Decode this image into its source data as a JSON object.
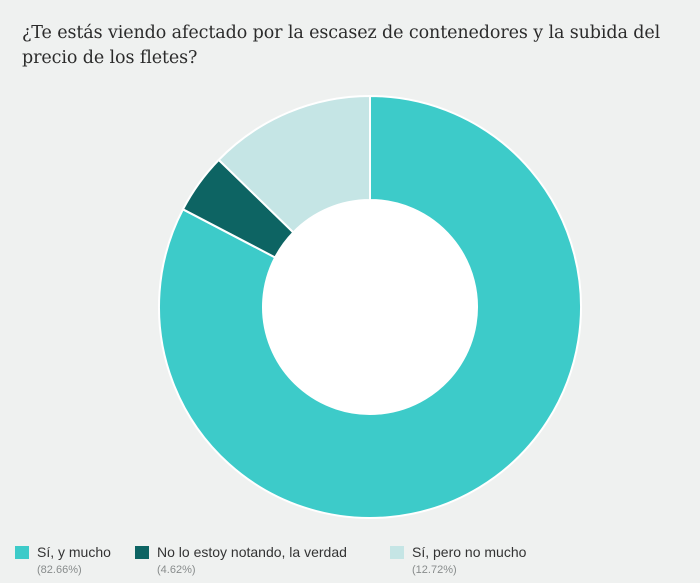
{
  "chart_data": {
    "type": "pie",
    "variant": "donut",
    "title": "¿Te estás viendo afectado por la escasez de contenedores y la subida del precio de los fletes?",
    "slices": [
      {
        "label": "Sí, y mucho",
        "value": 82.66,
        "display": "(82.66%)",
        "color": "#3dcbc9"
      },
      {
        "label": "No lo estoy notando, la verdad",
        "value": 4.62,
        "display": "(4.62%)",
        "color": "#0d6463"
      },
      {
        "label": "Sí, pero no mucho",
        "value": 12.72,
        "display": "(12.72%)",
        "color": "#c5e5e5"
      }
    ],
    "start": "12 o'clock",
    "direction": "clockwise",
    "legend_position": "bottom-left"
  }
}
